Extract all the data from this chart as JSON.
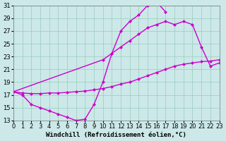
{
  "title": "",
  "xlabel": "Windchill (Refroidissement éolien,°C)",
  "ylabel": "",
  "background_color": "#cce8e8",
  "line_color": "#cc00cc",
  "marker": "D",
  "markersize": 2.5,
  "linewidth": 1.0,
  "xlim": [
    0,
    23
  ],
  "ylim": [
    13,
    31
  ],
  "xticks": [
    0,
    1,
    2,
    3,
    4,
    5,
    6,
    7,
    8,
    9,
    10,
    11,
    12,
    13,
    14,
    15,
    16,
    17,
    18,
    19,
    20,
    21,
    22,
    23
  ],
  "yticks": [
    13,
    15,
    17,
    19,
    21,
    23,
    25,
    27,
    29,
    31
  ],
  "grid_color": "#99ccbb",
  "xlabel_fontsize": 6.5,
  "tick_fontsize": 6,
  "curve1_x": [
    0,
    1,
    2,
    3,
    4,
    5,
    6,
    7,
    8,
    9,
    10,
    11,
    12,
    13,
    14,
    15,
    16,
    17
  ],
  "curve1_y": [
    17.5,
    17.0,
    15.5,
    15.0,
    14.5,
    14.0,
    13.5,
    13.0,
    13.2,
    15.5,
    19.0,
    23.5,
    27.0,
    28.5,
    29.5,
    31.0,
    31.5,
    30.0
  ],
  "curve2_x": [
    0,
    10,
    11,
    12,
    13,
    14,
    15,
    16,
    17,
    18,
    19,
    20,
    21,
    22,
    23
  ],
  "curve2_y": [
    17.5,
    22.5,
    23.5,
    24.5,
    25.5,
    26.5,
    27.5,
    28.0,
    28.5,
    28.0,
    28.5,
    28.0,
    24.5,
    21.5,
    22.0
  ],
  "curve3_x": [
    0,
    1,
    2,
    3,
    4,
    5,
    6,
    7,
    8,
    9,
    10,
    11,
    12,
    13,
    14,
    15,
    16,
    17,
    18,
    19,
    20,
    21,
    22,
    23
  ],
  "curve3_y": [
    17.5,
    17.3,
    17.2,
    17.2,
    17.3,
    17.3,
    17.4,
    17.5,
    17.6,
    17.8,
    18.0,
    18.3,
    18.7,
    19.0,
    19.5,
    20.0,
    20.5,
    21.0,
    21.5,
    21.8,
    22.0,
    22.2,
    22.3,
    22.5
  ]
}
